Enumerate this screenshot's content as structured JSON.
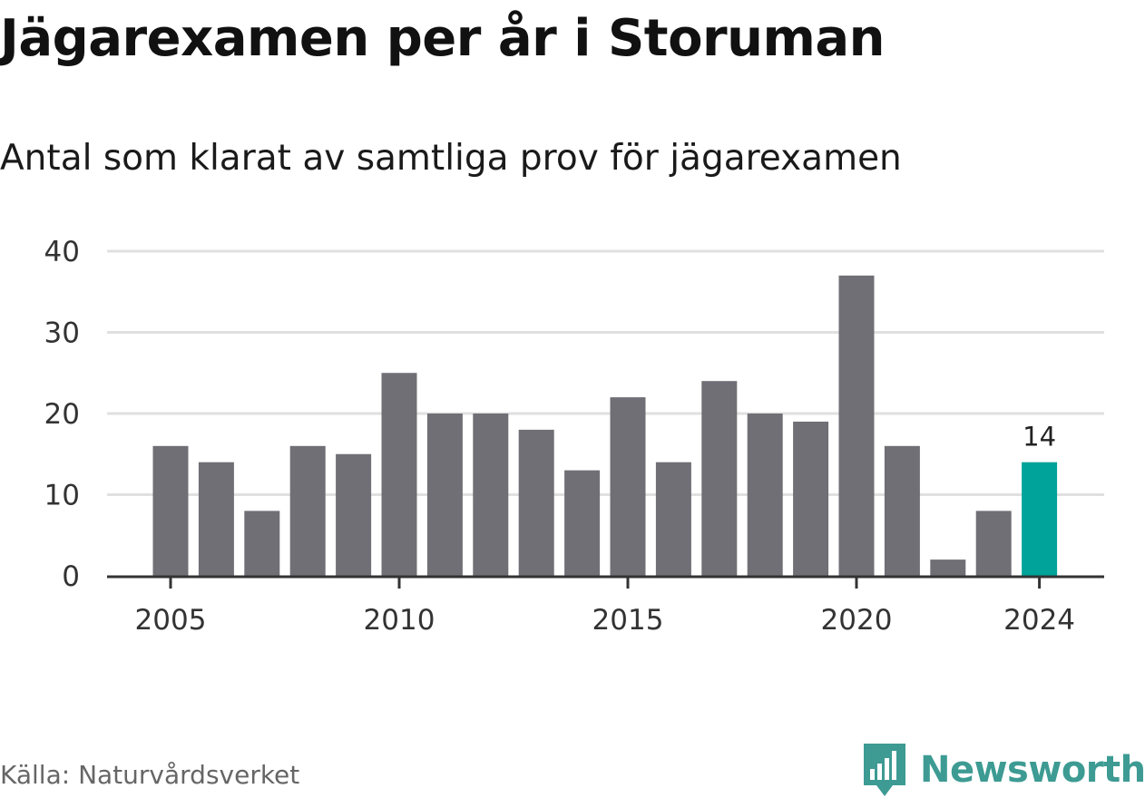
{
  "title": "Jägarexamen per år i Storuman",
  "subtitle": "Antal som klarat av samtliga prov för jägarexamen",
  "source": "Källa: Naturvårdsverket",
  "brand": "Newsworthy",
  "colors": {
    "bar": "#706f75",
    "highlight": "#00a39a",
    "grid": "#e0e0e0",
    "axis": "#333333",
    "brand": "#3d9b93"
  },
  "chart_data": {
    "type": "bar",
    "title": "Jägarexamen per år i Storuman",
    "subtitle": "Antal som klarat av samtliga prov för jägarexamen",
    "xlabel": "",
    "ylabel": "",
    "categories": [
      2005,
      2006,
      2007,
      2008,
      2009,
      2010,
      2011,
      2012,
      2013,
      2014,
      2015,
      2016,
      2017,
      2018,
      2019,
      2020,
      2021,
      2022,
      2023,
      2024
    ],
    "values": [
      16,
      14,
      8,
      16,
      15,
      25,
      20,
      20,
      18,
      13,
      22,
      14,
      24,
      20,
      19,
      37,
      16,
      2,
      8,
      14
    ],
    "highlight_category": 2024,
    "highlight_label": "14",
    "ylim": [
      0,
      40
    ],
    "yticks": [
      0,
      10,
      20,
      30,
      40
    ],
    "xticks": [
      "2005",
      "2010",
      "2015",
      "2020",
      "2024"
    ],
    "grid": true,
    "legend": "none"
  }
}
